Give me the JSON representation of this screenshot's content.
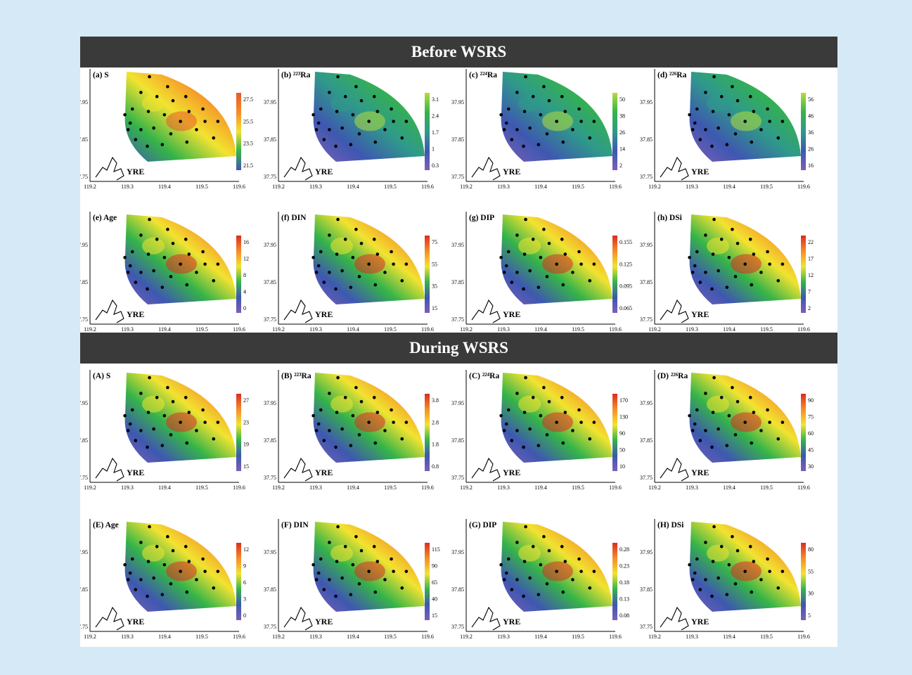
{
  "sections": [
    {
      "title": "Before WSRS"
    },
    {
      "title": "During WSRS"
    }
  ],
  "shared": {
    "estuary_label": "YRE",
    "x_ticks": [
      "119.2",
      "119.3",
      "119.4",
      "119.5",
      "119.6"
    ],
    "y_ticks": [
      "37.95",
      "37.85",
      "37.75"
    ]
  },
  "panels": [
    {
      "id": "a",
      "label": "(a) S",
      "ramp": "s_before",
      "scale": [
        "27.5",
        "25.5",
        "23.5",
        "21.5"
      ]
    },
    {
      "id": "b",
      "label": "(b) ²²³Ra",
      "ramp": "viridis",
      "scale": [
        "3.1",
        "2.4",
        "1.7",
        "1",
        "0.3"
      ]
    },
    {
      "id": "c",
      "label": "(c) ²²⁴Ra",
      "ramp": "viridis",
      "scale": [
        "50",
        "38",
        "26",
        "14",
        "2"
      ]
    },
    {
      "id": "d",
      "label": "(d) ²²⁶Ra",
      "ramp": "viridis",
      "scale": [
        "56",
        "46",
        "36",
        "26",
        "16"
      ]
    },
    {
      "id": "e",
      "label": "(e) Age",
      "ramp": "rainbow",
      "scale": [
        "16",
        "12",
        "8",
        "4",
        "0"
      ]
    },
    {
      "id": "f",
      "label": "(f) DIN",
      "ramp": "rainbow",
      "scale": [
        "75",
        "55",
        "35",
        "15"
      ]
    },
    {
      "id": "g",
      "label": "(g) DIP",
      "ramp": "rainbow",
      "scale": [
        "0.155",
        "0.125",
        "0.095",
        "0.065"
      ]
    },
    {
      "id": "h",
      "label": "(h) DSi",
      "ramp": "rainbow",
      "scale": [
        "22",
        "17",
        "12",
        "7",
        "2"
      ]
    },
    {
      "id": "A",
      "label": "(A) S",
      "ramp": "rainbow",
      "scale": [
        "27",
        "23",
        "19",
        "15"
      ]
    },
    {
      "id": "B",
      "label": "(B) ²²³Ra",
      "ramp": "rainbow",
      "scale": [
        "3.8",
        "2.8",
        "1.8",
        "0.8"
      ]
    },
    {
      "id": "C",
      "label": "(C) ²²⁴Ra",
      "ramp": "rainbow",
      "scale": [
        "170",
        "130",
        "90",
        "50",
        "10"
      ]
    },
    {
      "id": "D",
      "label": "(D) ²²⁶Ra",
      "ramp": "rainbow",
      "scale": [
        "90",
        "75",
        "60",
        "45",
        "30"
      ]
    },
    {
      "id": "E",
      "label": "(E) Age",
      "ramp": "rainbow",
      "scale": [
        "12",
        "9",
        "6",
        "3",
        "0"
      ]
    },
    {
      "id": "F",
      "label": "(F) DIN",
      "ramp": "rainbow",
      "scale": [
        "115",
        "90",
        "65",
        "40",
        "15"
      ]
    },
    {
      "id": "G",
      "label": "(G) DIP",
      "ramp": "rainbow",
      "scale": [
        "0.28",
        "0.23",
        "0.18",
        "0.13",
        "0.08"
      ]
    },
    {
      "id": "H",
      "label": "(H) DSi",
      "ramp": "rainbow",
      "scale": [
        "80",
        "55",
        "30",
        "5"
      ]
    }
  ],
  "colors": {
    "banner": "#3a3a3a",
    "background": "#d6e9f7",
    "station": "#000000",
    "purple": "#7b5fb8",
    "blue": "#3e58b0",
    "teal": "#2f9a8a",
    "green": "#35b449",
    "yellowgreen": "#b5dc3c",
    "yellow": "#f2e330",
    "orange": "#f58d27",
    "red": "#dd2b22"
  }
}
